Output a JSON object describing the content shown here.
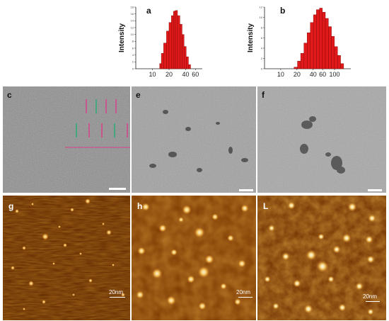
{
  "chart_data": [
    {
      "type": "bar",
      "panel": "a",
      "ylabel": "Intensity",
      "xlabel": "",
      "log_x": true,
      "xtick_labels": [
        "10",
        "20",
        "40",
        "60"
      ],
      "xtick_values": [
        10,
        20,
        40,
        60
      ],
      "xlim": [
        5,
        80
      ],
      "ytick_labels": [
        "0",
        "2",
        "4",
        "6",
        "8",
        "10",
        "12",
        "14",
        "16",
        "18"
      ],
      "ylim": [
        0,
        18
      ],
      "bins": [
        14,
        15,
        17,
        19,
        21,
        23,
        25,
        27,
        30,
        33,
        36,
        39,
        43,
        47
      ],
      "values": [
        1.5,
        4.5,
        7.5,
        11.0,
        13.5,
        15.5,
        16.8,
        17.0,
        15.5,
        13.0,
        10.0,
        6.5,
        3.5,
        1.2
      ]
    },
    {
      "type": "bar",
      "panel": "b",
      "ylabel": "Intensity",
      "xlabel": "",
      "log_x": true,
      "xtick_labels": [
        "10",
        "20",
        "40",
        "60",
        "100"
      ],
      "xtick_values": [
        10,
        20,
        40,
        60,
        100
      ],
      "xlim": [
        5,
        200
      ],
      "ytick_labels": [
        "0",
        "2",
        "4",
        "6",
        "8",
        "10",
        "12"
      ],
      "ylim": [
        0,
        12
      ],
      "bins": [
        19,
        22,
        25,
        29,
        33,
        38,
        43,
        49,
        56,
        63,
        72,
        82,
        93,
        106,
        121,
        138
      ],
      "values": [
        0.3,
        1.5,
        3.0,
        5.0,
        7.0,
        9.0,
        10.5,
        11.5,
        11.8,
        11.0,
        9.8,
        8.2,
        6.3,
        4.3,
        2.6,
        1.0
      ]
    }
  ],
  "panels": {
    "c": {
      "letter": "c"
    },
    "e": {
      "letter": "e"
    },
    "f": {
      "letter": "f"
    },
    "g": {
      "letter": "g",
      "scale": "20nm"
    },
    "h": {
      "letter": "h",
      "scale": "20nm"
    },
    "L": {
      "letter": "L",
      "scale": "20nm"
    }
  },
  "colors": {
    "bar_fill": "#e01a1a",
    "bar_stroke": "#7a0000",
    "tem_bg": "#8f8f8f",
    "afm_dark": "#5a2400",
    "afm_particle": "#f5d27a"
  }
}
